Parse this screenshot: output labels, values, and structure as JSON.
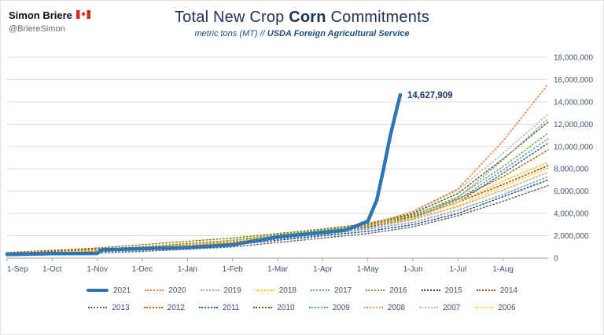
{
  "header": {
    "author": "Simon Briere",
    "handle": "@BriereSimon",
    "flag_icon": "canada-flag-icon"
  },
  "title": {
    "prefix": "Total New Crop ",
    "emphasis": "Corn",
    "suffix": " Commitments"
  },
  "subtitle": {
    "plain": "metric tons (MT) // ",
    "bold": "USDA Foreign Agricultural Service"
  },
  "chart_data": {
    "type": "line",
    "title": "Total New Crop Corn Commitments",
    "ylabel": "metric tons (MT)",
    "ylim": [
      0,
      18000000
    ],
    "ytick_step": 2000000,
    "xmax": 12,
    "x_labels": [
      "1-Sep",
      "1-Oct",
      "1-Nov",
      "1-Dec",
      "1-Jan",
      "1-Feb",
      "1-Mar",
      "1-Apr",
      "1-May",
      "1-Jun",
      "1-Jul",
      "1-Aug"
    ],
    "grid": true,
    "legend_position": "bottom",
    "annotation": {
      "text": "14,627,909",
      "x": 8.72,
      "y": 14627909
    },
    "colors": {
      "grid": "#dcdcdc",
      "axis": "#9aa0a6",
      "tick_label": "#44546a",
      "annotation": "#1f3864"
    },
    "series": [
      {
        "name": "2021",
        "color": "#2e75b6",
        "style": "solid",
        "x": [
          0,
          1,
          2,
          2.1,
          3,
          4,
          5,
          6,
          7,
          7.5,
          8,
          8.2,
          8.35,
          8.5,
          8.65,
          8.72
        ],
        "values": [
          350000,
          400000,
          420000,
          750000,
          850000,
          950000,
          1200000,
          1900000,
          2300000,
          2500000,
          3300000,
          5200000,
          8000000,
          11000000,
          13500000,
          14627909
        ]
      },
      {
        "name": "2020",
        "color": "#ed7d31",
        "style": "dotted",
        "values": [
          300000,
          450000,
          600000,
          800000,
          1100000,
          1400000,
          1900000,
          2300000,
          2900000,
          4200000,
          6200000,
          10500000,
          15600000
        ]
      },
      {
        "name": "2019",
        "color": "#a5a5a5",
        "style": "dotted",
        "values": [
          250000,
          400000,
          600000,
          800000,
          1000000,
          1300000,
          1800000,
          2200000,
          2700000,
          3500000,
          5400000,
          8800000,
          12500000
        ]
      },
      {
        "name": "2018",
        "color": "#ffc000",
        "style": "dotted",
        "values": [
          300000,
          500000,
          700000,
          900000,
          1200000,
          1500000,
          2000000,
          2400000,
          2900000,
          3600000,
          5000000,
          6900000,
          8600000
        ]
      },
      {
        "name": "2017",
        "color": "#5b9bd5",
        "style": "dotted",
        "values": [
          200000,
          350000,
          500000,
          700000,
          950000,
          1250000,
          1700000,
          2100000,
          2600000,
          3200000,
          4300000,
          5700000,
          7300000
        ]
      },
      {
        "name": "2016",
        "color": "#70ad47",
        "style": "dotted",
        "values": [
          350000,
          500000,
          700000,
          950000,
          1250000,
          1600000,
          2100000,
          2500000,
          3000000,
          3800000,
          5500000,
          8200000,
          11200000
        ]
      },
      {
        "name": "2015",
        "color": "#264478",
        "style": "dotted",
        "values": [
          250000,
          400000,
          550000,
          750000,
          950000,
          1200000,
          1600000,
          2000000,
          2400000,
          3000000,
          4000000,
          5500000,
          7000000
        ]
      },
      {
        "name": "2014",
        "color": "#9e480e",
        "style": "dotted",
        "values": [
          400000,
          600000,
          800000,
          1000000,
          1300000,
          1600000,
          2100000,
          2500000,
          3000000,
          3700000,
          5000000,
          6600000,
          8300000
        ]
      },
      {
        "name": "2013",
        "color": "#636363",
        "style": "dotted",
        "values": [
          200000,
          300000,
          450000,
          600000,
          800000,
          1000000,
          1400000,
          1800000,
          2200000,
          2800000,
          3800000,
          5100000,
          6500000
        ]
      },
      {
        "name": "2012",
        "color": "#997300",
        "style": "dotted",
        "values": [
          500000,
          700000,
          900000,
          1200000,
          1500000,
          1800000,
          2200000,
          2600000,
          3100000,
          3900000,
          5300000,
          7300000,
          9700000
        ]
      },
      {
        "name": "2011",
        "color": "#255e91",
        "style": "dotted",
        "values": [
          300000,
          450000,
          650000,
          850000,
          1100000,
          1400000,
          1900000,
          2300000,
          2800000,
          3600000,
          5000000,
          7600000,
          10300000
        ]
      },
      {
        "name": "2010",
        "color": "#43682b",
        "style": "dotted",
        "values": [
          250000,
          400000,
          600000,
          850000,
          1150000,
          1500000,
          2000000,
          2400000,
          3000000,
          4000000,
          5800000,
          8900000,
          12200000
        ]
      },
      {
        "name": "2009",
        "color": "#698ed0",
        "style": "dotted",
        "values": [
          300000,
          450000,
          650000,
          900000,
          1200000,
          1550000,
          2000000,
          2400000,
          2900000,
          3700000,
          5200000,
          7900000,
          10700000
        ]
      },
      {
        "name": "2008",
        "color": "#f1975a",
        "style": "dotted",
        "values": [
          350000,
          500000,
          700000,
          950000,
          1250000,
          1550000,
          2000000,
          2400000,
          2900000,
          3500000,
          4600000,
          6100000,
          7700000
        ]
      },
      {
        "name": "2007",
        "color": "#b7b7b7",
        "style": "dotted",
        "values": [
          250000,
          400000,
          600000,
          850000,
          1150000,
          1500000,
          2000000,
          2500000,
          3100000,
          4100000,
          6100000,
          9400000,
          12900000
        ]
      },
      {
        "name": "2006",
        "color": "#ffcd33",
        "style": "dotted",
        "values": [
          300000,
          450000,
          600000,
          800000,
          1050000,
          1350000,
          1800000,
          2200000,
          2700000,
          3400000,
          4700000,
          6400000,
          8100000
        ]
      }
    ]
  }
}
